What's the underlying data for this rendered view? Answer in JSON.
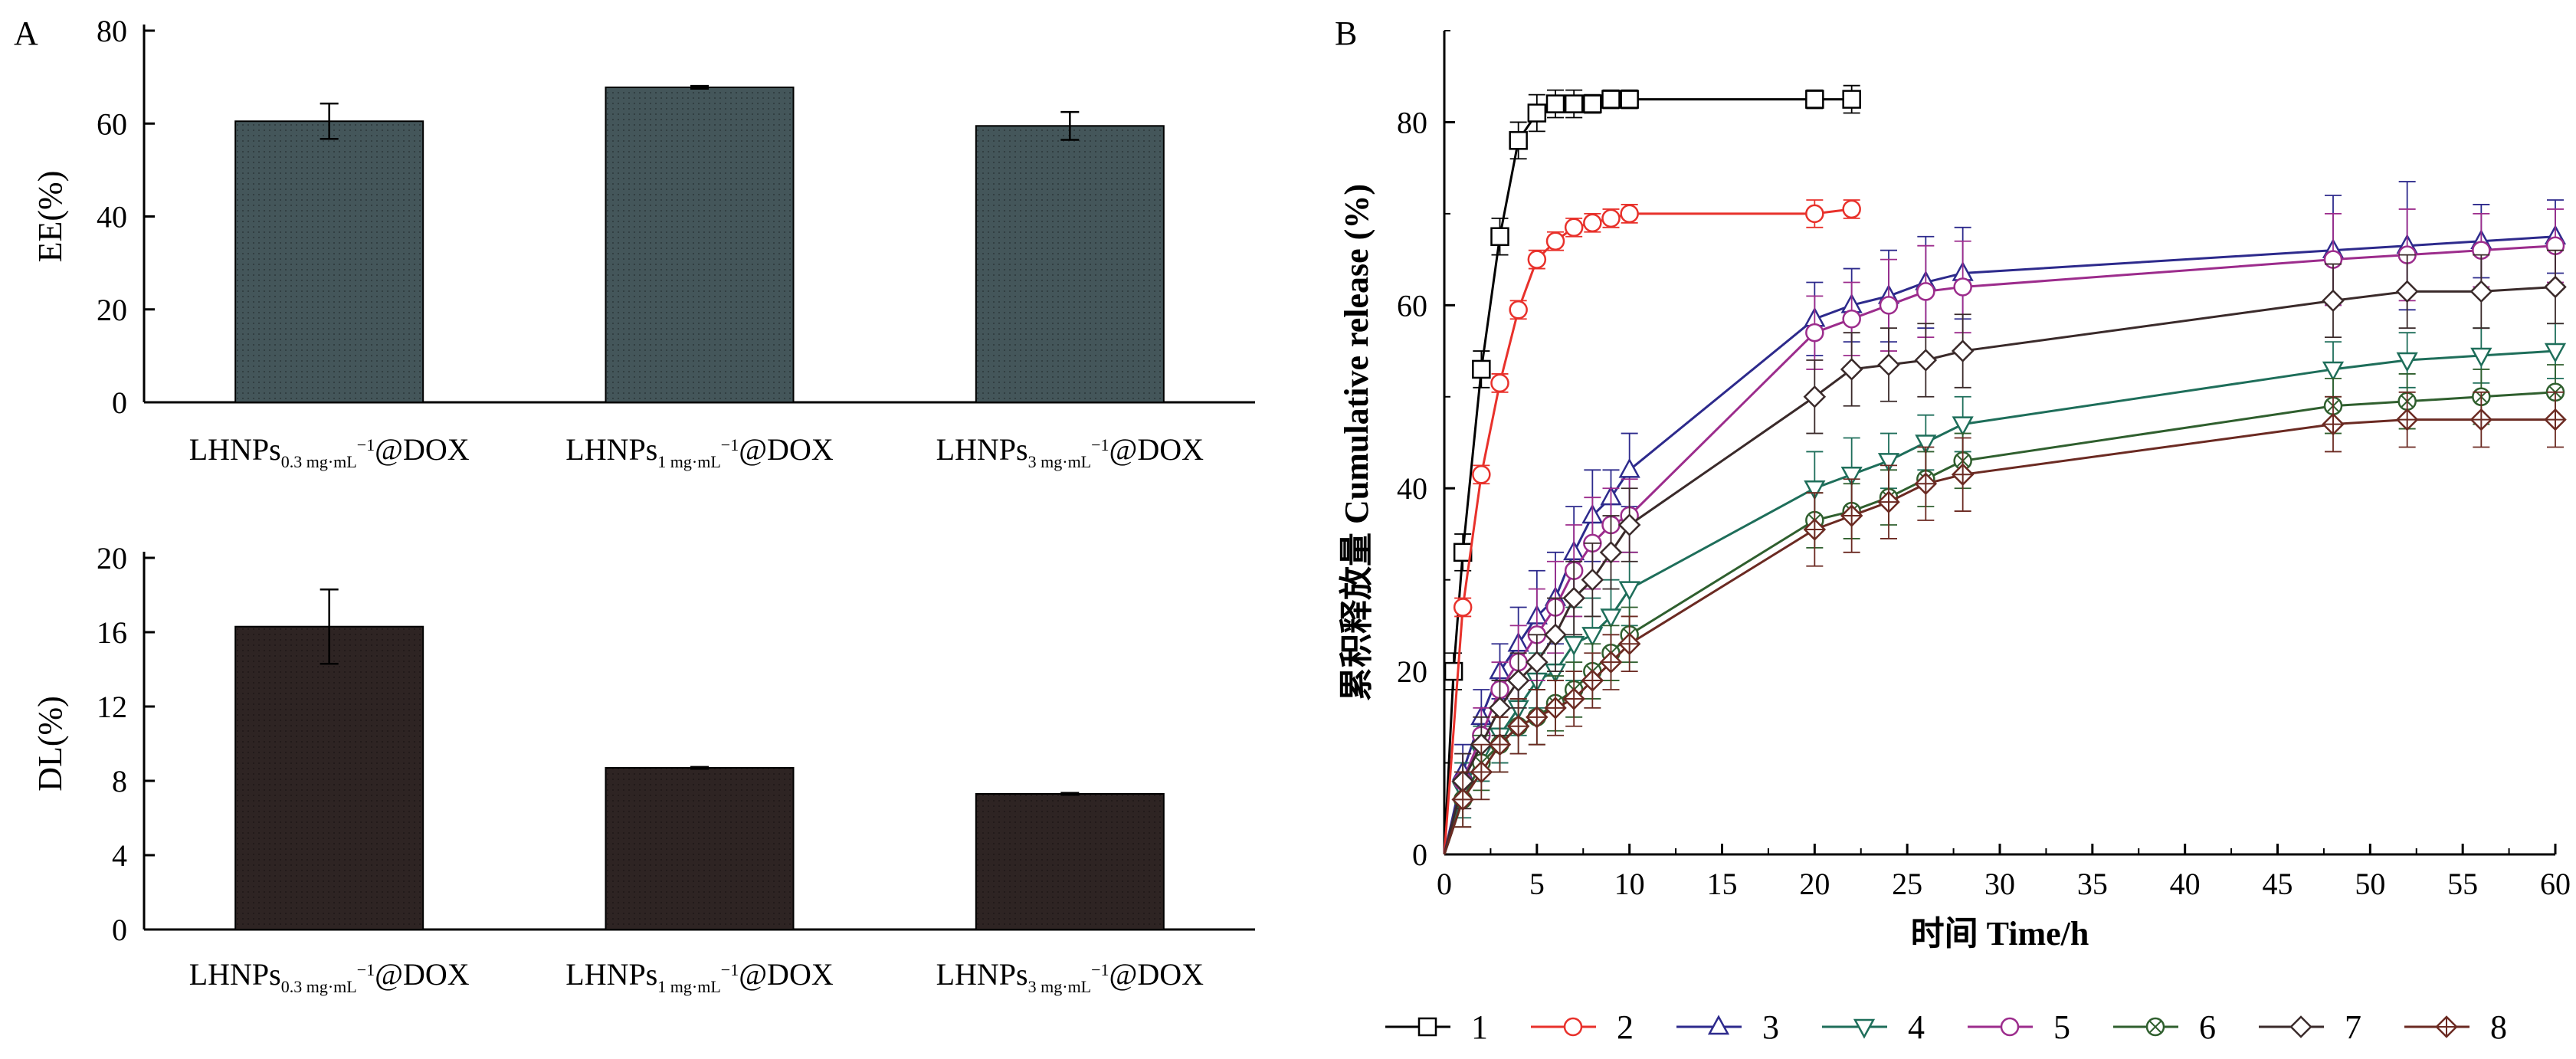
{
  "figure": {
    "panel_a_label": "A",
    "panel_b_label": "B"
  },
  "chart_data": [
    {
      "id": "ee",
      "type": "bar",
      "ylabel": "EE(%)",
      "ylim": [
        0,
        80
      ],
      "yticks": [
        0,
        20,
        40,
        60,
        80
      ],
      "bar_color": "#44565a",
      "categories": [
        {
          "main": "LHNPs",
          "sub": "0.3 mg·mL",
          "sup": "−1",
          "suffix": "@DOX"
        },
        {
          "main": "LHNPs",
          "sub": "1 mg·mL",
          "sup": "−1",
          "suffix": "@DOX"
        },
        {
          "main": "LHNPs",
          "sub": "3 mg·mL",
          "sup": "−1",
          "suffix": "@DOX"
        }
      ],
      "values": [
        60.5,
        67.8,
        59.5
      ],
      "errors": [
        3.8,
        0.3,
        3.0
      ]
    },
    {
      "id": "dl",
      "type": "bar",
      "ylabel": "DL(%)",
      "ylim": [
        0,
        20
      ],
      "yticks": [
        0,
        4,
        8,
        12,
        16,
        20
      ],
      "bar_color": "#2e2423",
      "categories": [
        {
          "main": "LHNPs",
          "sub": "0.3 mg·mL",
          "sup": "−1",
          "suffix": "@DOX"
        },
        {
          "main": "LHNPs",
          "sub": "1 mg·mL",
          "sup": "−1",
          "suffix": "@DOX"
        },
        {
          "main": "LHNPs",
          "sub": "3 mg·mL",
          "sup": "−1",
          "suffix": "@DOX"
        }
      ],
      "values": [
        16.3,
        8.7,
        7.3
      ],
      "errors": [
        2.0,
        0.05,
        0.05
      ]
    },
    {
      "id": "release",
      "type": "line",
      "xlabel": "时间 Time/h",
      "ylabel": "累积释放量 Cumulative release (%)",
      "xlim": [
        0,
        60
      ],
      "ylim": [
        0,
        90
      ],
      "xticks": [
        0,
        5,
        10,
        15,
        20,
        25,
        30,
        35,
        40,
        45,
        50,
        55,
        60
      ],
      "yticks": [
        0,
        20,
        40,
        60,
        80
      ],
      "legend_position": "bottom",
      "series": [
        {
          "name": "1",
          "color": "#000000",
          "marker": "square",
          "x": [
            0,
            0.5,
            1,
            2,
            3,
            4,
            5,
            6,
            7,
            8,
            9,
            10,
            20,
            22
          ],
          "y": [
            0,
            20,
            33,
            53,
            67.5,
            78,
            81,
            82,
            82,
            82,
            82.5,
            82.5,
            82.5,
            82.5
          ],
          "err": [
            0,
            2,
            2,
            2,
            2,
            2,
            2,
            1.5,
            1.5,
            1,
            1,
            1,
            1,
            1.5
          ]
        },
        {
          "name": "2",
          "color": "#e8312b",
          "marker": "circle",
          "x": [
            0,
            1,
            2,
            3,
            4,
            5,
            6,
            7,
            8,
            9,
            10,
            20,
            22
          ],
          "y": [
            0,
            27,
            41.5,
            51.5,
            59.5,
            65,
            67,
            68.5,
            69,
            69.5,
            70,
            70,
            70.5
          ],
          "err": [
            0,
            1,
            1,
            1,
            1,
            1,
            1,
            1,
            1,
            1,
            1,
            1.5,
            1
          ]
        },
        {
          "name": "3",
          "color": "#2d2a8c",
          "marker": "triangle-up",
          "x": [
            0,
            1,
            2,
            3,
            4,
            5,
            6,
            7,
            8,
            9,
            10,
            20,
            22,
            24,
            26,
            28,
            48,
            52,
            56,
            60
          ],
          "y": [
            0,
            9,
            15,
            20,
            23,
            26,
            28,
            33,
            37,
            39,
            42,
            58.5,
            60,
            61,
            62.5,
            63.5,
            66,
            66.5,
            67,
            67.5
          ],
          "err": [
            0,
            3,
            3,
            3,
            4,
            5,
            5,
            5,
            5,
            3,
            4,
            4,
            4,
            5,
            5,
            5,
            6,
            7,
            4,
            4
          ]
        },
        {
          "name": "4",
          "color": "#1e6e5a",
          "marker": "triangle-down",
          "x": [
            0,
            1,
            2,
            3,
            4,
            5,
            6,
            7,
            8,
            9,
            10,
            20,
            22,
            24,
            26,
            28,
            48,
            52,
            56,
            60
          ],
          "y": [
            0,
            7,
            11,
            13,
            16,
            19,
            20,
            23,
            24,
            26,
            29,
            40,
            41.5,
            43,
            45,
            47,
            53,
            54,
            54.5,
            55
          ],
          "err": [
            0,
            3,
            3,
            3,
            3,
            3,
            4,
            4,
            4,
            4,
            4,
            4,
            4,
            3,
            3,
            3,
            3,
            3,
            3,
            3
          ]
        },
        {
          "name": "5",
          "color": "#9c2c8c",
          "marker": "circle",
          "x": [
            0,
            1,
            2,
            3,
            4,
            5,
            6,
            7,
            8,
            9,
            10,
            20,
            22,
            24,
            26,
            28,
            48,
            52,
            56,
            60
          ],
          "y": [
            0,
            8,
            13,
            18,
            21,
            24,
            27,
            31,
            34,
            36,
            37,
            57,
            58.5,
            60,
            61.5,
            62,
            65,
            65.5,
            66,
            66.5
          ],
          "err": [
            0,
            3,
            3,
            3,
            4,
            5,
            5,
            5,
            5,
            4,
            4,
            4,
            4,
            5,
            5,
            5,
            5,
            5,
            4,
            4
          ]
        },
        {
          "name": "6",
          "color": "#2f5f2e",
          "marker": "circle-x",
          "x": [
            0,
            1,
            2,
            3,
            4,
            5,
            6,
            7,
            8,
            9,
            10,
            20,
            22,
            24,
            26,
            28,
            48,
            52,
            56,
            60
          ],
          "y": [
            0,
            6,
            10,
            12,
            14,
            15,
            16.5,
            18,
            20,
            22,
            24,
            36.5,
            37.5,
            39,
            41,
            43,
            49,
            49.5,
            50,
            50.5
          ],
          "err": [
            0,
            3,
            3,
            3,
            3,
            3,
            3,
            3,
            3,
            3,
            3,
            3,
            3,
            3,
            3,
            3,
            3,
            3,
            3,
            3
          ]
        },
        {
          "name": "7",
          "color": "#3a2a2a",
          "marker": "diamond",
          "x": [
            0,
            1,
            2,
            3,
            4,
            5,
            6,
            7,
            8,
            9,
            10,
            20,
            22,
            24,
            26,
            28,
            48,
            52,
            56,
            60
          ],
          "y": [
            0,
            8,
            12,
            16,
            19,
            21,
            24,
            28,
            30,
            33,
            36,
            50,
            53,
            53.5,
            54,
            55,
            60.5,
            61.5,
            61.5,
            62
          ],
          "err": [
            0,
            3,
            3,
            3,
            3,
            3,
            4,
            4,
            4,
            4,
            4,
            4,
            4,
            4,
            4,
            4,
            4,
            4,
            4,
            4
          ]
        },
        {
          "name": "8",
          "color": "#6b2a22",
          "marker": "diamond-plus",
          "x": [
            0,
            1,
            2,
            3,
            4,
            5,
            6,
            7,
            8,
            9,
            10,
            20,
            22,
            24,
            26,
            28,
            48,
            52,
            56,
            60
          ],
          "y": [
            0,
            6,
            9,
            12,
            14,
            15,
            16,
            17,
            19,
            21,
            23,
            35.5,
            37,
            38.5,
            40.5,
            41.5,
            47,
            47.5,
            47.5,
            47.5
          ],
          "err": [
            0,
            3,
            3,
            3,
            3,
            3,
            3,
            3,
            3,
            3,
            3,
            4,
            4,
            4,
            4,
            4,
            3,
            3,
            3,
            3
          ]
        }
      ]
    }
  ]
}
